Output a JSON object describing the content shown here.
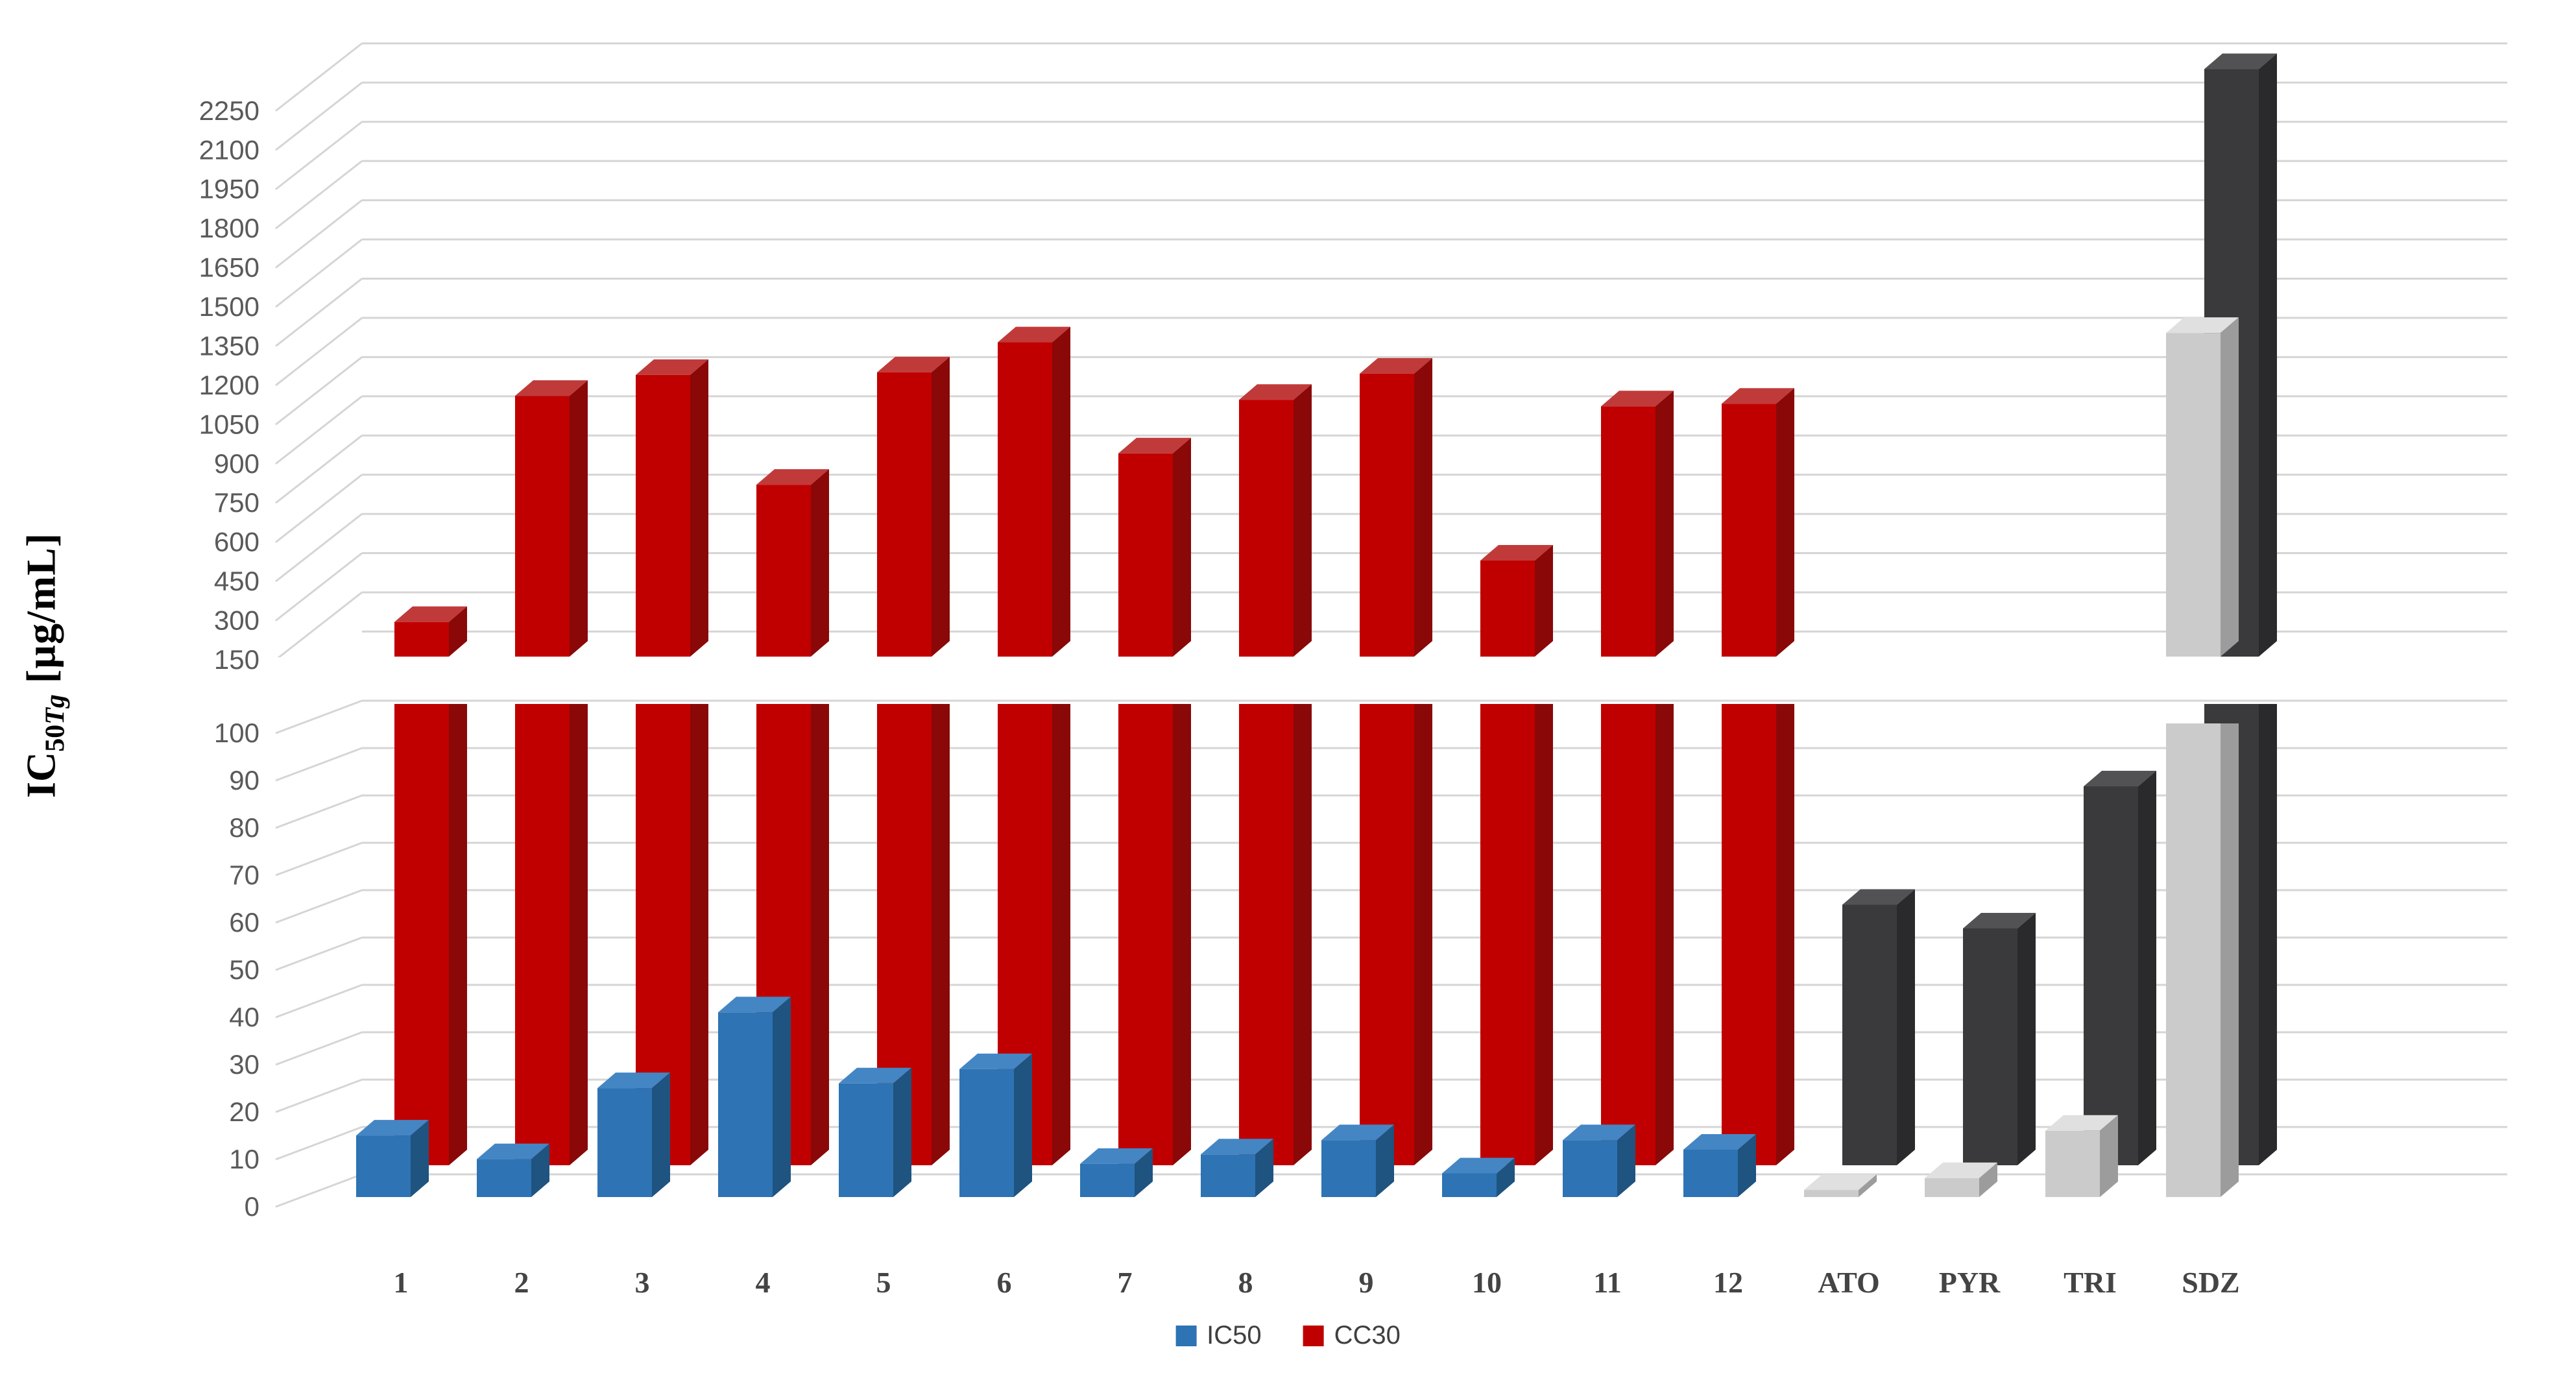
{
  "figure": {
    "ylabel_prefix": "IC",
    "ylabel_sub": "50",
    "ylabel_sub_italic": "Tg",
    "ylabel_unit": " [µg/mL]"
  },
  "legend": {
    "items": [
      {
        "label": "IC50",
        "color": "#2E73B3"
      },
      {
        "label": "CC30",
        "color": "#C00000"
      }
    ]
  },
  "axes": {
    "upper_ticks": [
      2250,
      2100,
      1950,
      1800,
      1650,
      1500,
      1350,
      1200,
      1050,
      900,
      750,
      600,
      450,
      300,
      150
    ],
    "lower_ticks": [
      100,
      90,
      80,
      70,
      60,
      50,
      40,
      30,
      20,
      10,
      0
    ]
  },
  "chart_data": {
    "type": "bar",
    "title": "",
    "xlabel": "",
    "ylabel": "IC50Tg [ug/mL]",
    "style": "3d-columns, broken y-axis",
    "grid": true,
    "legend_position": "bottom",
    "axis": {
      "broken": true,
      "lower_range": [
        0,
        100
      ],
      "lower_step": 10,
      "upper_range": [
        150,
        2250
      ],
      "upper_step": 150,
      "upper_axis_max": 2400
    },
    "categories": [
      "1",
      "2",
      "3",
      "4",
      "5",
      "6",
      "7",
      "8",
      "9",
      "10",
      "11",
      "12",
      "ATO",
      "PYR",
      "TRI",
      "SDZ"
    ],
    "reference_categories_start": 12,
    "series": [
      {
        "name": "IC50",
        "values": [
          13,
          8,
          23,
          39,
          24,
          27,
          7,
          9,
          12,
          5,
          12,
          10,
          1.5,
          4,
          14,
          1320
        ]
      },
      {
        "name": "CC30",
        "values": [
          115,
          980,
          1060,
          640,
          1070,
          1185,
          760,
          965,
          1065,
          350,
          940,
          950,
          55,
          50,
          80,
          2230
        ]
      }
    ],
    "palette": {
      "IC50": {
        "front": "#2E73B3",
        "top": "#4486C4",
        "side": "#1F5380"
      },
      "CC30": {
        "front": "#C00000",
        "top": "#C13A3A",
        "side": "#8A0808"
      },
      "IC50_ref": {
        "front": "#CBCBCB",
        "top": "#E0E0E0",
        "side": "#9C9C9C"
      },
      "CC30_ref": {
        "front": "#3A3A3C",
        "top": "#525254",
        "side": "#2A2A2C"
      },
      "gridline": "#D5D5D5",
      "tick_label": "#5A5A5A",
      "category_label": "#444444"
    }
  }
}
